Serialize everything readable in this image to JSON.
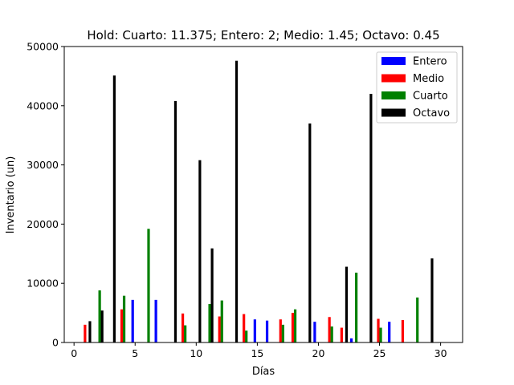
{
  "chart_data": {
    "type": "bar",
    "title": "Hold: Cuarto: 11.375; Entero: 2; Medio: 1.45; Octavo: 0.45",
    "xlabel": "Días",
    "ylabel": "Inventario (un)",
    "xlim": [
      -0.8,
      31.8
    ],
    "ylim": [
      0,
      50000
    ],
    "xticks": [
      0,
      5,
      10,
      15,
      20,
      25,
      30
    ],
    "yticks": [
      0,
      10000,
      20000,
      30000,
      40000,
      50000
    ],
    "xtick_labels": [
      "0",
      "5",
      "10",
      "15",
      "20",
      "25",
      "30"
    ],
    "ytick_labels": [
      "0",
      "10000",
      "20000",
      "30000",
      "40000",
      "50000"
    ],
    "grid": false,
    "legend_position": "top-right",
    "series": [
      {
        "name": "Entero",
        "color": "#0000ff",
        "points": [
          {
            "x": 4.8,
            "y": 7200
          },
          {
            "x": 6.7,
            "y": 7200
          },
          {
            "x": 14.8,
            "y": 3900
          },
          {
            "x": 15.8,
            "y": 3700
          },
          {
            "x": 19.7,
            "y": 3500
          },
          {
            "x": 22.7,
            "y": 700
          },
          {
            "x": 25.8,
            "y": 3500
          }
        ]
      },
      {
        "name": "Medio",
        "color": "#ff0000",
        "points": [
          {
            "x": 0.9,
            "y": 3000
          },
          {
            "x": 3.9,
            "y": 5600
          },
          {
            "x": 8.9,
            "y": 4900
          },
          {
            "x": 11.9,
            "y": 4400
          },
          {
            "x": 13.9,
            "y": 4800
          },
          {
            "x": 16.9,
            "y": 3900
          },
          {
            "x": 17.9,
            "y": 5000
          },
          {
            "x": 20.9,
            "y": 4300
          },
          {
            "x": 21.9,
            "y": 2500
          },
          {
            "x": 24.9,
            "y": 4000
          },
          {
            "x": 26.9,
            "y": 3800
          }
        ]
      },
      {
        "name": "Cuarto",
        "color": "#008000",
        "points": [
          {
            "x": 2.1,
            "y": 8800
          },
          {
            "x": 4.1,
            "y": 7900
          },
          {
            "x": 6.1,
            "y": 19200
          },
          {
            "x": 9.1,
            "y": 2900
          },
          {
            "x": 11.1,
            "y": 6500
          },
          {
            "x": 12.1,
            "y": 7100
          },
          {
            "x": 14.1,
            "y": 2000
          },
          {
            "x": 17.1,
            "y": 3000
          },
          {
            "x": 18.1,
            "y": 5600
          },
          {
            "x": 21.1,
            "y": 2700
          },
          {
            "x": 23.1,
            "y": 11800
          },
          {
            "x": 25.1,
            "y": 2500
          },
          {
            "x": 28.1,
            "y": 7600
          }
        ]
      },
      {
        "name": "Octavo",
        "color": "#000000",
        "points": [
          {
            "x": 1.3,
            "y": 3600
          },
          {
            "x": 2.3,
            "y": 5400
          },
          {
            "x": 3.3,
            "y": 45100
          },
          {
            "x": 8.3,
            "y": 40800
          },
          {
            "x": 10.3,
            "y": 30800
          },
          {
            "x": 11.3,
            "y": 15900
          },
          {
            "x": 13.3,
            "y": 47600
          },
          {
            "x": 19.3,
            "y": 37000
          },
          {
            "x": 22.3,
            "y": 12800
          },
          {
            "x": 24.3,
            "y": 42000
          },
          {
            "x": 29.3,
            "y": 14200
          }
        ]
      }
    ]
  }
}
